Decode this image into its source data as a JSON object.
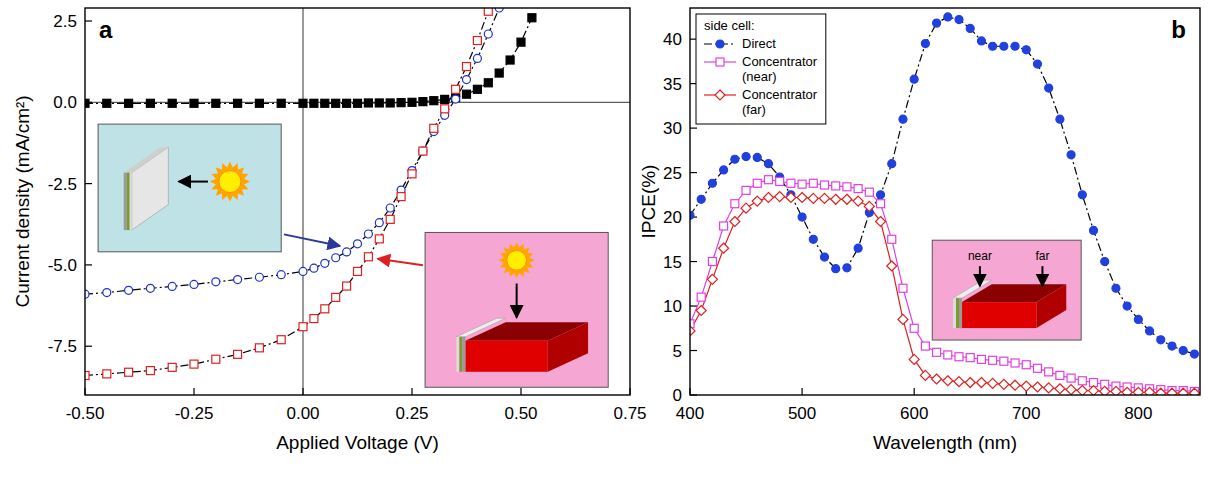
{
  "chart_data": [
    {
      "type": "line",
      "panel_label": "a",
      "x_label": "Applied Voltage (V)",
      "y_label": "Current density (mA/cm²)",
      "xlim": [
        -0.5,
        0.75
      ],
      "ylim": [
        -9,
        2.9
      ],
      "xticks": [
        {
          "value": -0.5,
          "label": "-0.50"
        },
        {
          "value": -0.25,
          "label": "-0.25"
        },
        {
          "value": 0,
          "label": "0.00"
        },
        {
          "value": 0.25,
          "label": "0.25"
        },
        {
          "value": 0.5,
          "label": "0.50"
        },
        {
          "value": 0.75,
          "label": "0.75"
        }
      ],
      "yticks": [
        {
          "value": -7.5,
          "label": "-7.5"
        },
        {
          "value": -5,
          "label": "-5.0"
        },
        -2.5,
        {
          "value": 0,
          "label": "0.0"
        },
        2.5
      ],
      "x": [
        -0.5,
        -0.45,
        -0.4,
        -0.35,
        -0.3,
        -0.25,
        -0.2,
        -0.15,
        -0.1,
        -0.05,
        0,
        0.025,
        0.05,
        0.075,
        0.1,
        0.125,
        0.15,
        0.175,
        0.2,
        0.225,
        0.25,
        0.275,
        0.3,
        0.325,
        0.35,
        0.375,
        0.4,
        0.425,
        0.45,
        0.475,
        0.5,
        0.525
      ],
      "series": [
        {
          "color": "#000000",
          "marker": "filled-square",
          "line_style": "dashdot",
          "values": [
            -0.03,
            -0.03,
            -0.03,
            -0.03,
            -0.03,
            -0.03,
            -0.03,
            -0.03,
            -0.03,
            -0.03,
            -0.03,
            -0.03,
            -0.03,
            -0.03,
            -0.03,
            -0.03,
            -0.02,
            -0.02,
            -0.02,
            -0.01,
            0,
            0.02,
            0.05,
            0.09,
            0.15,
            0.25,
            0.4,
            0.6,
            0.9,
            1.3,
            1.85,
            2.6
          ]
        },
        {
          "color": "#1f2fd0",
          "marker": "open-circle",
          "line_style": "dashdot",
          "values": [
            -5.9,
            -5.85,
            -5.78,
            -5.72,
            -5.66,
            -5.6,
            -5.52,
            -5.45,
            -5.38,
            -5.3,
            -5.2,
            -5.1,
            -4.95,
            -4.78,
            -4.6,
            -4.35,
            -4.05,
            -3.7,
            -3.25,
            -2.7,
            -2.1,
            -1.5,
            -0.9,
            -0.4,
            0.1,
            0.7,
            1.35,
            2.1,
            2.9,
            null,
            null,
            null
          ]
        },
        {
          "color": "#e02020",
          "marker": "open-square",
          "line_style": "dashdot",
          "values": [
            -8.4,
            -8.35,
            -8.3,
            -8.25,
            -8.15,
            -8.05,
            -7.9,
            -7.75,
            -7.55,
            -7.3,
            -6.9,
            -6.65,
            -6.35,
            -6.0,
            -5.65,
            -5.2,
            -4.75,
            -4.2,
            -3.6,
            -2.9,
            -2.2,
            -1.5,
            -0.8,
            -0.2,
            0.4,
            1.1,
            1.9,
            2.8,
            null,
            null,
            null,
            null
          ]
        }
      ]
    },
    {
      "type": "line",
      "panel_label": "b",
      "x_label": "Wavelength (nm)",
      "y_label": "IPCE(%)",
      "xlim": [
        400,
        855
      ],
      "ylim": [
        0,
        43.5
      ],
      "xticks": [
        400,
        500,
        600,
        700,
        800
      ],
      "yticks": [
        0,
        5,
        10,
        15,
        20,
        25,
        30,
        35,
        40
      ],
      "legend": "top-left",
      "legend_title": "side cell:",
      "annotations": [
        "near",
        "far"
      ],
      "x": [
        400,
        410,
        420,
        430,
        440,
        450,
        460,
        470,
        480,
        490,
        500,
        510,
        520,
        530,
        540,
        550,
        560,
        570,
        580,
        590,
        600,
        610,
        620,
        630,
        640,
        650,
        660,
        670,
        680,
        690,
        700,
        710,
        720,
        730,
        740,
        750,
        760,
        770,
        780,
        790,
        800,
        810,
        820,
        830,
        840,
        850
      ],
      "series": [
        {
          "name": "Direct",
          "color": "#2040e0",
          "marker": "filled-circle",
          "line_style": "dashdot",
          "values": [
            20.2,
            22,
            23.8,
            25.3,
            26.5,
            26.8,
            26.7,
            26.0,
            24.5,
            22.5,
            20,
            17.5,
            15.5,
            14.2,
            14.3,
            16.5,
            20.5,
            22.5,
            26,
            31,
            35.5,
            39.5,
            41.8,
            42.5,
            42.2,
            41.2,
            39.8,
            39.2,
            39.2,
            39.2,
            38.8,
            37.2,
            34.5,
            31,
            27,
            22.5,
            18.5,
            15,
            12,
            10,
            8.5,
            7.2,
            6.2,
            5.5,
            5,
            4.6
          ]
        },
        {
          "name": "Concentrator (near)",
          "color": "#e040e0",
          "marker": "open-square",
          "line_style": "solid",
          "values": [
            8,
            11,
            15,
            19,
            21.5,
            23,
            23.8,
            24.2,
            24,
            23.8,
            23.7,
            23.8,
            23.6,
            23.5,
            23.4,
            23.2,
            22.8,
            21.5,
            17.5,
            12,
            7.5,
            5.5,
            4.8,
            4.5,
            4.3,
            4.2,
            4.0,
            3.9,
            3.8,
            3.6,
            3.4,
            3.0,
            2.6,
            2.2,
            1.9,
            1.6,
            1.4,
            1.2,
            1.0,
            0.9,
            0.8,
            0.7,
            0.6,
            0.5,
            0.5,
            0.4
          ]
        },
        {
          "name": "Concentrator (far)",
          "color": "#e02020",
          "marker": "open-diamond",
          "line_style": "solid",
          "values": [
            7.2,
            9.5,
            13,
            16.5,
            19.5,
            21,
            21.8,
            22.2,
            22.3,
            22.2,
            22.2,
            22.1,
            22.1,
            22,
            22,
            21.8,
            21.2,
            19.5,
            14.5,
            8.5,
            4.0,
            2.2,
            1.8,
            1.6,
            1.5,
            1.4,
            1.4,
            1.3,
            1.2,
            1.1,
            1.0,
            0.9,
            0.8,
            0.7,
            0.6,
            0.5,
            0.5,
            0.4,
            0.4,
            0.3,
            0.3,
            0.3,
            0.2,
            0.2,
            0.2,
            0.2
          ]
        }
      ]
    }
  ]
}
